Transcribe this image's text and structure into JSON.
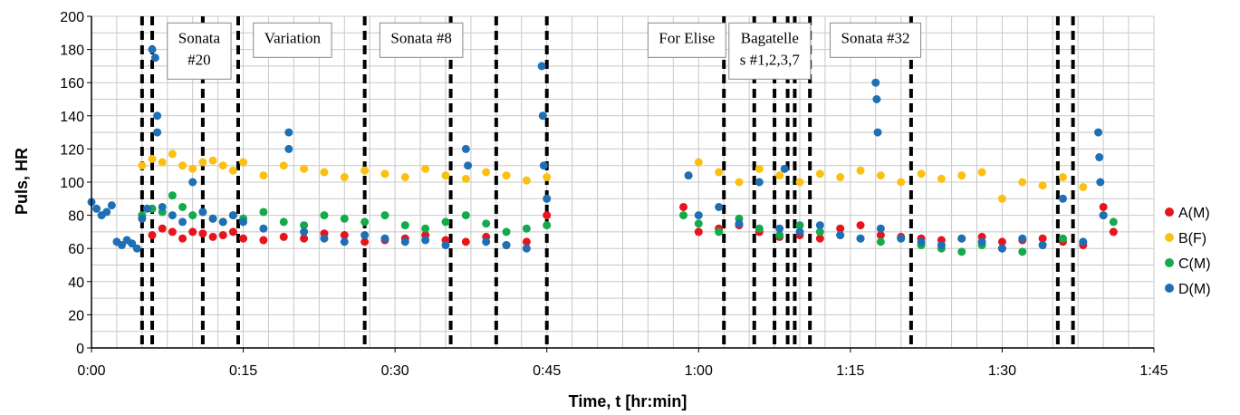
{
  "chart_data": {
    "type": "scatter",
    "xlabel": "Time, t [hr:min]",
    "ylabel": "Puls, HR",
    "x_unit": "minutes",
    "xlim": [
      0,
      105
    ],
    "ylim": [
      0,
      200
    ],
    "x_ticks": [
      0,
      15,
      30,
      45,
      60,
      75,
      90,
      105
    ],
    "x_tick_labels": [
      "0:00",
      "0:15",
      "0:30",
      "0:45",
      "1:00",
      "1:15",
      "1:30",
      "1:45"
    ],
    "y_ticks": [
      0,
      20,
      40,
      60,
      80,
      100,
      120,
      140,
      160,
      180,
      200
    ],
    "grid": true,
    "legend_position": "right",
    "series": [
      {
        "name": "A(M)",
        "color": "#e8141c",
        "x": [
          5.0,
          6.0,
          7.0,
          8.0,
          9.0,
          10.0,
          11.0,
          12.0,
          13.0,
          14.0,
          15.0,
          17.0,
          19.0,
          21.0,
          23.0,
          25.0,
          27.0,
          29.0,
          31.0,
          33.0,
          35.0,
          37.0,
          39.0,
          41.0,
          43.0,
          45.0,
          58.5,
          60.0,
          62.0,
          64.0,
          66.0,
          68.0,
          70.0,
          72.0,
          74.0,
          76.0,
          78.0,
          80.0,
          82.0,
          84.0,
          86.0,
          88.0,
          90.0,
          92.0,
          94.0,
          96.0,
          98.0,
          100.0,
          101.0
        ],
        "y": [
          78,
          68,
          72,
          70,
          66,
          70,
          69,
          67,
          68,
          70,
          66,
          65,
          67,
          66,
          69,
          68,
          64,
          65,
          66,
          68,
          65,
          64,
          67,
          62,
          64,
          80,
          85,
          70,
          72,
          74,
          70,
          67,
          68,
          66,
          72,
          74,
          68,
          67,
          66,
          65,
          66,
          67,
          64,
          65,
          66,
          64,
          62,
          85,
          70
        ]
      },
      {
        "name": "B(F)",
        "color": "#fbc110",
        "x": [
          5.0,
          6.0,
          7.0,
          8.0,
          9.0,
          10.0,
          11.0,
          12.0,
          13.0,
          14.0,
          15.0,
          17.0,
          19.0,
          21.0,
          23.0,
          25.0,
          27.0,
          29.0,
          31.0,
          33.0,
          35.0,
          37.0,
          39.0,
          41.0,
          43.0,
          45.0,
          59.0,
          60.0,
          62.0,
          64.0,
          66.0,
          68.0,
          70.0,
          72.0,
          74.0,
          76.0,
          78.0,
          80.0,
          82.0,
          84.0,
          86.0,
          88.0,
          90.0,
          92.0,
          94.0,
          96.0,
          98.0
        ],
        "y": [
          110,
          114,
          112,
          117,
          110,
          108,
          112,
          113,
          110,
          107,
          112,
          104,
          110,
          108,
          106,
          103,
          107,
          105,
          103,
          108,
          104,
          102,
          106,
          104,
          101,
          103,
          104,
          112,
          106,
          100,
          108,
          104,
          100,
          105,
          103,
          107,
          104,
          100,
          105,
          102,
          104,
          106,
          90,
          100,
          98,
          103,
          97
        ]
      },
      {
        "name": "C(M)",
        "color": "#14aa4c",
        "x": [
          5.0,
          6.0,
          7.0,
          8.0,
          9.0,
          10.0,
          11.0,
          12.0,
          13.0,
          14.0,
          15.0,
          17.0,
          19.0,
          21.0,
          23.0,
          25.0,
          27.0,
          29.0,
          31.0,
          33.0,
          35.0,
          37.0,
          39.0,
          41.0,
          43.0,
          45.0,
          58.5,
          60.0,
          62.0,
          64.0,
          66.0,
          68.0,
          70.0,
          72.0,
          74.0,
          76.0,
          78.0,
          80.0,
          82.0,
          84.0,
          86.0,
          88.0,
          90.0,
          92.0,
          94.0,
          96.0,
          98.0,
          100.0,
          101.0
        ],
        "y": [
          80,
          84,
          82,
          92,
          85,
          80,
          82,
          78,
          76,
          80,
          78,
          82,
          76,
          74,
          80,
          78,
          76,
          80,
          74,
          72,
          76,
          80,
          75,
          70,
          72,
          74,
          80,
          75,
          70,
          78,
          72,
          68,
          74,
          70,
          68,
          66,
          64,
          66,
          62,
          60,
          58,
          62,
          60,
          58,
          62,
          66,
          64,
          80,
          76
        ]
      },
      {
        "name": "D(M)",
        "color": "#1f6fb5",
        "x": [
          0.0,
          0.5,
          1.0,
          1.5,
          2.0,
          2.5,
          3.0,
          3.5,
          4.0,
          4.5,
          5.0,
          5.5,
          6.0,
          6.3,
          6.5,
          6.5,
          7.0,
          8.0,
          9.0,
          10.0,
          11.0,
          12.0,
          13.0,
          14.0,
          15.0,
          17.0,
          19.5,
          19.5,
          21.0,
          23.0,
          25.0,
          27.0,
          29.0,
          31.0,
          33.0,
          35.0,
          37.0,
          37.2,
          39.0,
          41.0,
          43.0,
          44.5,
          44.6,
          44.7,
          45.0,
          59.0,
          60.0,
          62.0,
          64.0,
          66.0,
          68.0,
          68.5,
          70.0,
          72.0,
          74.0,
          76.0,
          77.5,
          77.6,
          77.7,
          78.0,
          80.0,
          82.0,
          84.0,
          86.0,
          88.0,
          90.0,
          92.0,
          94.0,
          96.0,
          98.0,
          99.5,
          99.6,
          99.7,
          100.0
        ],
        "y": [
          88,
          84,
          80,
          82,
          86,
          64,
          62,
          65,
          63,
          60,
          78,
          84,
          180,
          175,
          140,
          130,
          85,
          80,
          76,
          100,
          82,
          78,
          76,
          80,
          76,
          72,
          130,
          120,
          70,
          66,
          64,
          68,
          66,
          64,
          65,
          62,
          120,
          110,
          64,
          62,
          60,
          170,
          140,
          110,
          90,
          104,
          80,
          85,
          75,
          100,
          72,
          108,
          70,
          74,
          68,
          66,
          160,
          150,
          130,
          72,
          66,
          64,
          62,
          66,
          64,
          60,
          66,
          62,
          90,
          64,
          130,
          115,
          100,
          80
        ]
      }
    ],
    "event_markers_x": [
      5.0,
      6.0,
      11.0,
      14.5,
      27.0,
      35.5,
      40.0,
      45.0,
      62.5,
      65.5,
      67.5,
      68.8,
      69.5,
      71.0,
      81.0,
      95.5,
      97.0
    ],
    "annotations": [
      {
        "lines": [
          "Sonata",
          "#20"
        ],
        "x": 7.5,
        "y": 196
      },
      {
        "lines": [
          "Variation"
        ],
        "x": 16.0,
        "y": 196
      },
      {
        "lines": [
          "Sonata #8"
        ],
        "x": 28.5,
        "y": 196
      },
      {
        "lines": [
          "For Elise"
        ],
        "x": 55.0,
        "y": 196
      },
      {
        "lines": [
          "Bagatelle",
          "s #1,2,3,7"
        ],
        "x": 63.0,
        "y": 196
      },
      {
        "lines": [
          "Sonata #32"
        ],
        "x": 73.0,
        "y": 196
      }
    ]
  }
}
